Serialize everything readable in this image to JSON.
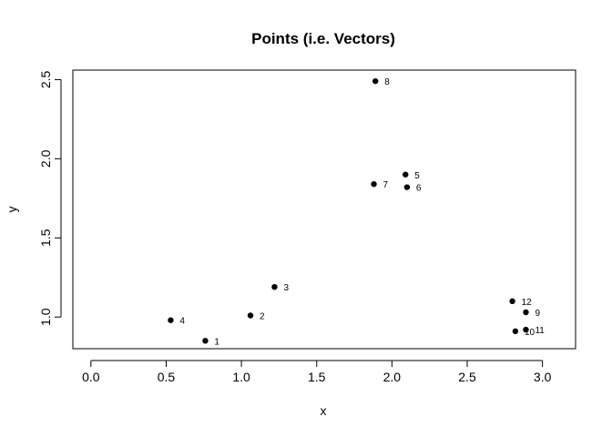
{
  "chart_data": {
    "type": "scatter",
    "title": "Points (i.e. Vectors)",
    "xlabel": "x",
    "ylabel": "y",
    "xlim": [
      -0.12,
      3.22
    ],
    "ylim": [
      0.8,
      2.56
    ],
    "xticks": [
      "0.0",
      "0.5",
      "1.0",
      "1.5",
      "2.0",
      "2.5",
      "3.0"
    ],
    "xtick_values": [
      0.0,
      0.5,
      1.0,
      1.5,
      2.0,
      2.5,
      3.0
    ],
    "yticks": [
      "1.0",
      "1.5",
      "2.0",
      "2.5"
    ],
    "ytick_values": [
      1.0,
      1.5,
      2.0,
      2.5
    ],
    "grid": false,
    "point_color": "#000000",
    "points": [
      {
        "label": "1",
        "x": 0.76,
        "y": 0.85
      },
      {
        "label": "2",
        "x": 1.06,
        "y": 1.01
      },
      {
        "label": "3",
        "x": 1.22,
        "y": 1.19
      },
      {
        "label": "4",
        "x": 0.53,
        "y": 0.98
      },
      {
        "label": "5",
        "x": 2.09,
        "y": 1.9
      },
      {
        "label": "6",
        "x": 2.1,
        "y": 1.82
      },
      {
        "label": "7",
        "x": 1.88,
        "y": 1.84
      },
      {
        "label": "8",
        "x": 1.89,
        "y": 2.49
      },
      {
        "label": "9",
        "x": 2.89,
        "y": 1.03
      },
      {
        "label": "10",
        "x": 2.82,
        "y": 0.91
      },
      {
        "label": "11",
        "x": 2.89,
        "y": 0.92
      },
      {
        "label": "12",
        "x": 2.8,
        "y": 1.1
      }
    ]
  }
}
